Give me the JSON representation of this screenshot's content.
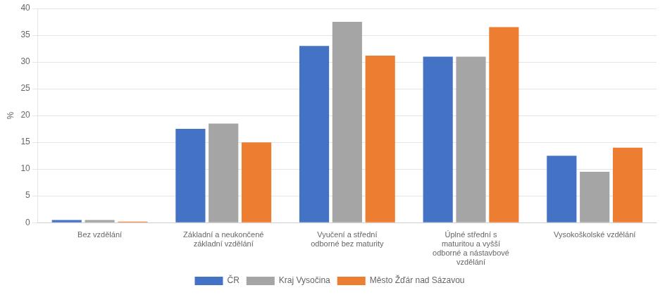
{
  "chart_data": {
    "type": "bar",
    "categories": [
      "Bez vzdělání",
      "Základní a neukončené\nzákladní vzdělání",
      "Vyučení a střední\nodborné bez maturity",
      "Úplné střední s\nmaturitou a vyšší\nodborné a nástavbové\nvzdělání",
      "Vysokoškolské vzdělání"
    ],
    "series": [
      {
        "name": "ČR",
        "color": "#4472C4",
        "values": [
          0.5,
          17.5,
          33.0,
          31.0,
          12.5
        ]
      },
      {
        "name": "Kraj Vysočina",
        "color": "#A5A5A5",
        "values": [
          0.5,
          18.5,
          37.5,
          31.0,
          9.5
        ]
      },
      {
        "name": "Město Žďár nad Sázavou",
        "color": "#ED7D31",
        "values": [
          0.2,
          15.0,
          31.2,
          36.5,
          14.0
        ]
      }
    ],
    "ylabel": "%",
    "ylim": [
      0,
      40
    ],
    "yticks": [
      0,
      5,
      10,
      15,
      20,
      25,
      30,
      35,
      40
    ],
    "grid": true,
    "legend": "bottom"
  }
}
